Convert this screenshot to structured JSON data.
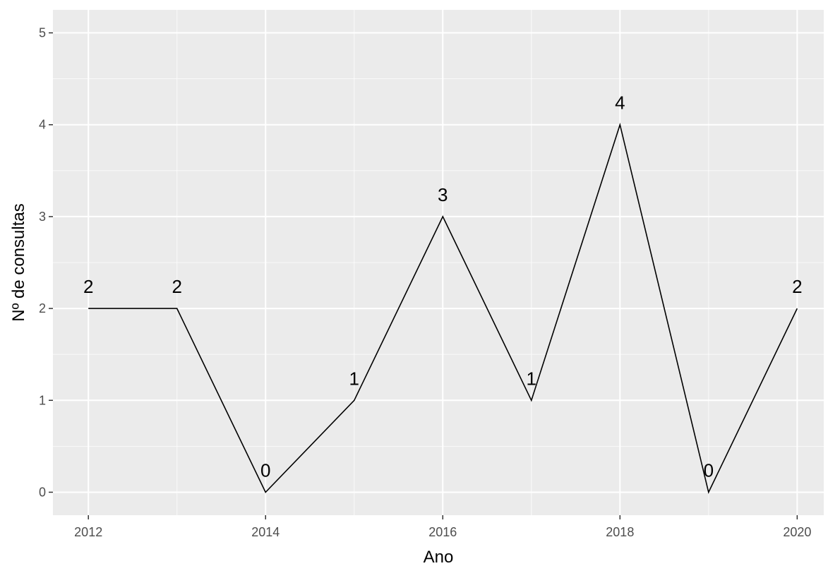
{
  "chart_data": {
    "type": "line",
    "x": [
      2012,
      2013,
      2014,
      2015,
      2016,
      2017,
      2018,
      2019,
      2020
    ],
    "values": [
      2,
      2,
      0,
      1,
      3,
      1,
      4,
      0,
      2
    ],
    "data_labels": [
      "2",
      "2",
      "0",
      "1",
      "3",
      "1",
      "4",
      "0",
      "2"
    ],
    "xlabel": "Ano",
    "ylabel": "Nº de consultas",
    "xticks": [
      2012,
      2014,
      2016,
      2018,
      2020
    ],
    "xtick_labels": [
      "2012",
      "2014",
      "2016",
      "2018",
      "2020"
    ],
    "yticks": [
      0,
      1,
      2,
      3,
      4,
      5
    ],
    "ytick_labels": [
      "0",
      "1",
      "2",
      "3",
      "4",
      "5"
    ],
    "xlim": [
      2011.6,
      2020.3
    ],
    "ylim": [
      -0.25,
      5.25
    ],
    "grid": true,
    "legend": "none",
    "colors": {
      "panel": "#EBEBEB",
      "grid": "#FFFFFF",
      "line": "#000000",
      "tick_text": "#4D4D4D",
      "tick_mark": "#333333",
      "text": "#000000"
    }
  }
}
